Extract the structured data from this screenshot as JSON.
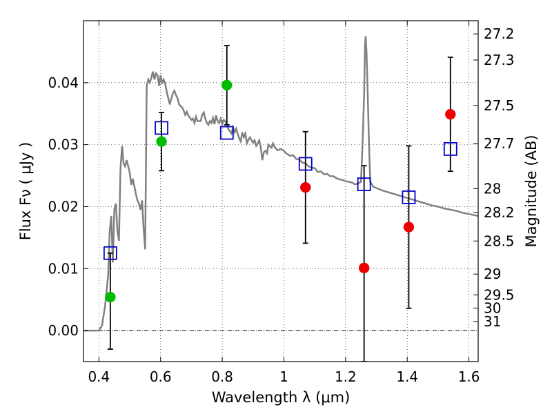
{
  "chart_data": {
    "type": "scatter",
    "xlabel": "Wavelength  λ (μm)",
    "ylabel": "Flux  Fν  ( μJy )",
    "y2label": "Magnitude (AB)",
    "xlim": [
      0.35,
      1.63
    ],
    "ylim": [
      -0.005,
      0.05
    ],
    "grid": true,
    "x_ticks": [
      {
        "value": 0.4,
        "label": "0.4"
      },
      {
        "value": 0.6,
        "label": "0.6"
      },
      {
        "value": 0.8,
        "label": "0.8"
      },
      {
        "value": 1.0,
        "label": "1"
      },
      {
        "value": 1.2,
        "label": "1.2"
      },
      {
        "value": 1.4,
        "label": "1.4"
      },
      {
        "value": 1.6,
        "label": "1.6"
      }
    ],
    "y_ticks": [
      {
        "value": 0.0,
        "label": "0.00"
      },
      {
        "value": 0.01,
        "label": "0.01"
      },
      {
        "value": 0.02,
        "label": "0.02"
      },
      {
        "value": 0.03,
        "label": "0.03"
      },
      {
        "value": 0.04,
        "label": "0.04"
      }
    ],
    "mag_ticks": [
      {
        "mag": 27.2,
        "label": "27.2"
      },
      {
        "mag": 27.3,
        "label": "27.3"
      },
      {
        "mag": 27.5,
        "label": "27.5"
      },
      {
        "mag": 27.7,
        "label": "27.7"
      },
      {
        "mag": 28,
        "label": "28"
      },
      {
        "mag": 28.2,
        "label": "28.2"
      },
      {
        "mag": 28.5,
        "label": "28.5"
      },
      {
        "mag": 29,
        "label": "29"
      },
      {
        "mag": 29.5,
        "label": "29.5"
      },
      {
        "mag": 30,
        "label": "30"
      },
      {
        "mag": 31,
        "label": "31"
      }
    ],
    "colors": {
      "sed": "#808080",
      "model": "#0000cc",
      "detection": "#00bb00",
      "upper": "#ee0000",
      "errorbar": "#000000"
    },
    "sed_curve": [
      [
        0.35,
        0.0
      ],
      [
        0.4,
        0.0
      ],
      [
        0.41,
        0.0008
      ],
      [
        0.42,
        0.004
      ],
      [
        0.43,
        0.009
      ],
      [
        0.435,
        0.016
      ],
      [
        0.44,
        0.0185
      ],
      [
        0.445,
        0.011
      ],
      [
        0.45,
        0.0195
      ],
      [
        0.455,
        0.0205
      ],
      [
        0.46,
        0.016
      ],
      [
        0.465,
        0.0145
      ],
      [
        0.47,
        0.026
      ],
      [
        0.475,
        0.0298
      ],
      [
        0.48,
        0.027
      ],
      [
        0.485,
        0.0265
      ],
      [
        0.49,
        0.0275
      ],
      [
        0.495,
        0.0265
      ],
      [
        0.5,
        0.0255
      ],
      [
        0.505,
        0.0235
      ],
      [
        0.51,
        0.0245
      ],
      [
        0.52,
        0.022
      ],
      [
        0.525,
        0.021
      ],
      [
        0.53,
        0.0205
      ],
      [
        0.535,
        0.0195
      ],
      [
        0.54,
        0.021
      ],
      [
        0.545,
        0.0165
      ],
      [
        0.55,
        0.0131
      ],
      [
        0.555,
        0.0395
      ],
      [
        0.56,
        0.0405
      ],
      [
        0.565,
        0.04
      ],
      [
        0.57,
        0.0408
      ],
      [
        0.575,
        0.0418
      ],
      [
        0.58,
        0.0405
      ],
      [
        0.585,
        0.0415
      ],
      [
        0.59,
        0.0412
      ],
      [
        0.595,
        0.0395
      ],
      [
        0.6,
        0.0412
      ],
      [
        0.605,
        0.04
      ],
      [
        0.61,
        0.0405
      ],
      [
        0.615,
        0.0398
      ],
      [
        0.62,
        0.0385
      ],
      [
        0.625,
        0.0375
      ],
      [
        0.63,
        0.0365
      ],
      [
        0.635,
        0.0375
      ],
      [
        0.64,
        0.0383
      ],
      [
        0.645,
        0.0387
      ],
      [
        0.65,
        0.038
      ],
      [
        0.655,
        0.0375
      ],
      [
        0.66,
        0.0365
      ],
      [
        0.67,
        0.036
      ],
      [
        0.675,
        0.0355
      ],
      [
        0.68,
        0.0348
      ],
      [
        0.685,
        0.0353
      ],
      [
        0.69,
        0.0347
      ],
      [
        0.7,
        0.034
      ],
      [
        0.705,
        0.0342
      ],
      [
        0.71,
        0.0335
      ],
      [
        0.715,
        0.0345
      ],
      [
        0.72,
        0.0338
      ],
      [
        0.73,
        0.0338
      ],
      [
        0.735,
        0.0348
      ],
      [
        0.74,
        0.0352
      ],
      [
        0.745,
        0.0342
      ],
      [
        0.75,
        0.0335
      ],
      [
        0.755,
        0.0332
      ],
      [
        0.76,
        0.0338
      ],
      [
        0.765,
        0.0335
      ],
      [
        0.77,
        0.0343
      ],
      [
        0.775,
        0.0333
      ],
      [
        0.78,
        0.0347
      ],
      [
        0.785,
        0.0338
      ],
      [
        0.79,
        0.0335
      ],
      [
        0.795,
        0.0342
      ],
      [
        0.8,
        0.0333
      ],
      [
        0.805,
        0.034
      ],
      [
        0.81,
        0.0337
      ],
      [
        0.815,
        0.0333
      ],
      [
        0.82,
        0.0325
      ],
      [
        0.83,
        0.0318
      ],
      [
        0.835,
        0.0328
      ],
      [
        0.84,
        0.032
      ],
      [
        0.845,
        0.0326
      ],
      [
        0.85,
        0.0318
      ],
      [
        0.855,
        0.031
      ],
      [
        0.86,
        0.0305
      ],
      [
        0.865,
        0.032
      ],
      [
        0.87,
        0.0312
      ],
      [
        0.875,
        0.0318
      ],
      [
        0.88,
        0.0302
      ],
      [
        0.885,
        0.0308
      ],
      [
        0.89,
        0.0312
      ],
      [
        0.895,
        0.0307
      ],
      [
        0.9,
        0.0303
      ],
      [
        0.905,
        0.0307
      ],
      [
        0.91,
        0.0298
      ],
      [
        0.915,
        0.0302
      ],
      [
        0.92,
        0.0307
      ],
      [
        0.925,
        0.0295
      ],
      [
        0.93,
        0.0275
      ],
      [
        0.935,
        0.0288
      ],
      [
        0.94,
        0.029
      ],
      [
        0.945,
        0.0286
      ],
      [
        0.95,
        0.03
      ],
      [
        0.955,
        0.0297
      ],
      [
        0.96,
        0.0295
      ],
      [
        0.965,
        0.0302
      ],
      [
        0.97,
        0.0296
      ],
      [
        0.975,
        0.0293
      ],
      [
        0.98,
        0.0291
      ],
      [
        0.99,
        0.0293
      ],
      [
        1.0,
        0.029
      ],
      [
        1.01,
        0.0285
      ],
      [
        1.02,
        0.0282
      ],
      [
        1.03,
        0.0283
      ],
      [
        1.04,
        0.0277
      ],
      [
        1.05,
        0.0276
      ],
      [
        1.06,
        0.0271
      ],
      [
        1.07,
        0.027
      ],
      [
        1.08,
        0.0265
      ],
      [
        1.09,
        0.0263
      ],
      [
        1.1,
        0.0262
      ],
      [
        1.11,
        0.0256
      ],
      [
        1.12,
        0.0257
      ],
      [
        1.13,
        0.0252
      ],
      [
        1.14,
        0.0253
      ],
      [
        1.15,
        0.0249
      ],
      [
        1.16,
        0.0249
      ],
      [
        1.17,
        0.0246
      ],
      [
        1.18,
        0.0244
      ],
      [
        1.19,
        0.0243
      ],
      [
        1.2,
        0.0241
      ],
      [
        1.21,
        0.024
      ],
      [
        1.22,
        0.0239
      ],
      [
        1.23,
        0.0236
      ],
      [
        1.24,
        0.0237
      ],
      [
        1.25,
        0.024
      ],
      [
        1.255,
        0.03
      ],
      [
        1.26,
        0.038
      ],
      [
        1.263,
        0.046
      ],
      [
        1.265,
        0.0475
      ],
      [
        1.268,
        0.045
      ],
      [
        1.272,
        0.038
      ],
      [
        1.276,
        0.03
      ],
      [
        1.28,
        0.024
      ],
      [
        1.29,
        0.0232
      ],
      [
        1.3,
        0.023
      ],
      [
        1.32,
        0.0226
      ],
      [
        1.34,
        0.0223
      ],
      [
        1.36,
        0.022
      ],
      [
        1.38,
        0.0217
      ],
      [
        1.4,
        0.0214
      ],
      [
        1.42,
        0.0211
      ],
      [
        1.44,
        0.0208
      ],
      [
        1.46,
        0.0205
      ],
      [
        1.48,
        0.0202
      ],
      [
        1.5,
        0.02
      ],
      [
        1.52,
        0.0197
      ],
      [
        1.54,
        0.0195
      ],
      [
        1.56,
        0.0193
      ],
      [
        1.58,
        0.019
      ],
      [
        1.6,
        0.0188
      ],
      [
        1.63,
        0.0185
      ]
    ],
    "model_points": [
      {
        "x": 0.437,
        "y": 0.0125
      },
      {
        "x": 0.603,
        "y": 0.0327
      },
      {
        "x": 0.815,
        "y": 0.0319
      },
      {
        "x": 1.07,
        "y": 0.0269
      },
      {
        "x": 1.26,
        "y": 0.0236
      },
      {
        "x": 1.405,
        "y": 0.0215
      },
      {
        "x": 1.54,
        "y": 0.0293
      }
    ],
    "observed_points": [
      {
        "x": 0.437,
        "y": 0.0054,
        "lo": -0.003,
        "hi": 0.0125,
        "kind": "detection"
      },
      {
        "x": 0.603,
        "y": 0.0305,
        "lo": 0.0258,
        "hi": 0.0352,
        "kind": "detection"
      },
      {
        "x": 0.815,
        "y": 0.0396,
        "lo": 0.0332,
        "hi": 0.046,
        "kind": "detection"
      },
      {
        "x": 1.07,
        "y": 0.0231,
        "lo": 0.0141,
        "hi": 0.0321,
        "kind": "upper"
      },
      {
        "x": 1.26,
        "y": 0.0101,
        "lo": -0.005,
        "hi": 0.0266,
        "kind": "upper"
      },
      {
        "x": 1.405,
        "y": 0.0167,
        "lo": 0.0036,
        "hi": 0.0298,
        "kind": "upper"
      },
      {
        "x": 1.54,
        "y": 0.0349,
        "lo": 0.0257,
        "hi": 0.0441,
        "kind": "upper"
      }
    ]
  }
}
